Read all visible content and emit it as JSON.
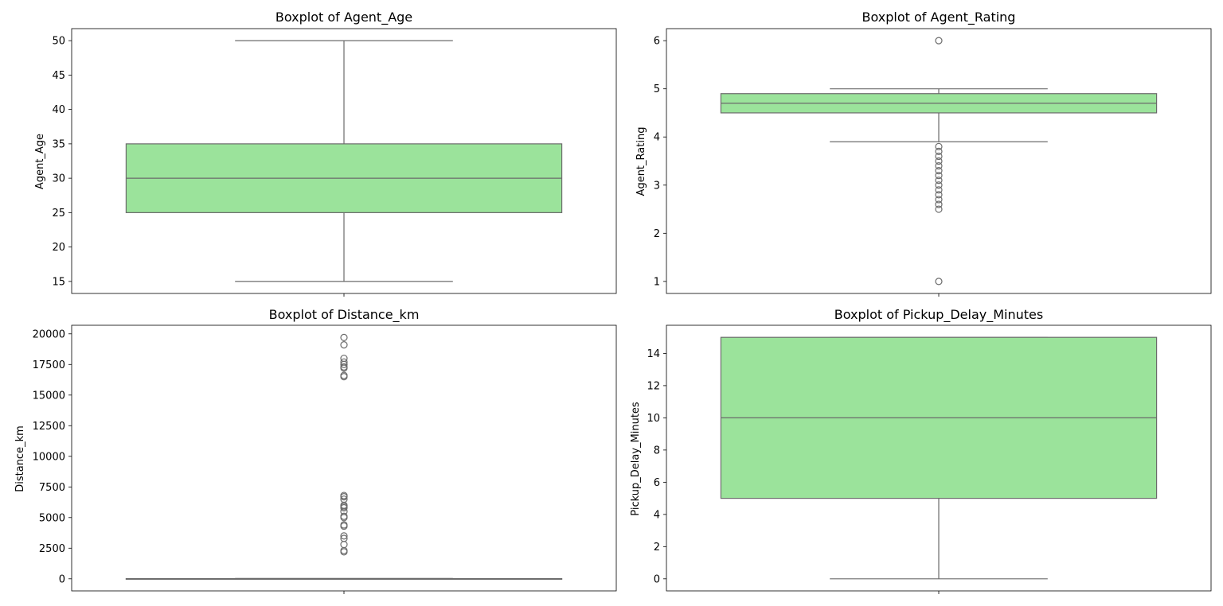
{
  "chart_data": [
    {
      "type": "box",
      "title": "Boxplot of Agent_Age",
      "ylabel": "Agent_Age",
      "xlabel": "",
      "ylim": [
        13.25,
        51.75
      ],
      "yticks": [
        15,
        20,
        25,
        30,
        35,
        40,
        45,
        50
      ],
      "tick_labels": [
        "15",
        "20",
        "25",
        "30",
        "35",
        "40",
        "45",
        "50"
      ],
      "stats": {
        "whisker_low": 15,
        "q1": 25,
        "median": 30,
        "q3": 35,
        "whisker_high": 50
      },
      "outliers": []
    },
    {
      "type": "box",
      "title": "Boxplot of Agent_Rating",
      "ylabel": "Agent_Rating",
      "xlabel": "",
      "ylim": [
        0.75,
        6.25
      ],
      "yticks": [
        1,
        2,
        3,
        4,
        5,
        6
      ],
      "tick_labels": [
        "1",
        "2",
        "3",
        "4",
        "5",
        "6"
      ],
      "stats": {
        "whisker_low": 3.9,
        "q1": 4.5,
        "median": 4.7,
        "q3": 4.9,
        "whisker_high": 5.0
      },
      "outliers": [
        1.0,
        2.5,
        2.6,
        2.7,
        2.8,
        2.9,
        3.0,
        3.1,
        3.2,
        3.3,
        3.4,
        3.5,
        3.6,
        3.7,
        3.8,
        6.0
      ]
    },
    {
      "type": "box",
      "title": "Boxplot of Distance_km",
      "ylabel": "Distance_km",
      "xlabel": "",
      "ylim": [
        -987,
        20700
      ],
      "yticks": [
        0,
        2500,
        5000,
        7500,
        10000,
        12500,
        15000,
        17500,
        20000
      ],
      "tick_labels": [
        "0",
        "2500",
        "5000",
        "7500",
        "10000",
        "12500",
        "15000",
        "17500",
        "20000"
      ],
      "stats": {
        "whisker_low": 0,
        "q1": 5,
        "median": 10,
        "q3": 15,
        "whisker_high": 30
      },
      "outliers": [
        2200,
        2300,
        2800,
        3300,
        3500,
        4300,
        4400,
        5000,
        5100,
        5500,
        5800,
        5900,
        6000,
        6500,
        6700,
        6800,
        16500,
        16600,
        17200,
        17300,
        17500,
        17700,
        18000,
        19100,
        19700
      ]
    },
    {
      "type": "box",
      "title": "Boxplot of Pickup_Delay_Minutes",
      "ylabel": "Pickup_Delay_Minutes",
      "xlabel": "",
      "ylim": [
        -0.75,
        15.75
      ],
      "yticks": [
        0,
        2,
        4,
        6,
        8,
        10,
        12,
        14
      ],
      "tick_labels": [
        "0",
        "2",
        "4",
        "6",
        "8",
        "10",
        "12",
        "14"
      ],
      "stats": {
        "whisker_low": 0,
        "q1": 5,
        "median": 10,
        "q3": 15,
        "whisker_high": 15
      },
      "outliers": []
    }
  ],
  "style": {
    "box_fill": "#9be39b",
    "line_color": "#6b6b6b",
    "frame_color": "#000000"
  }
}
